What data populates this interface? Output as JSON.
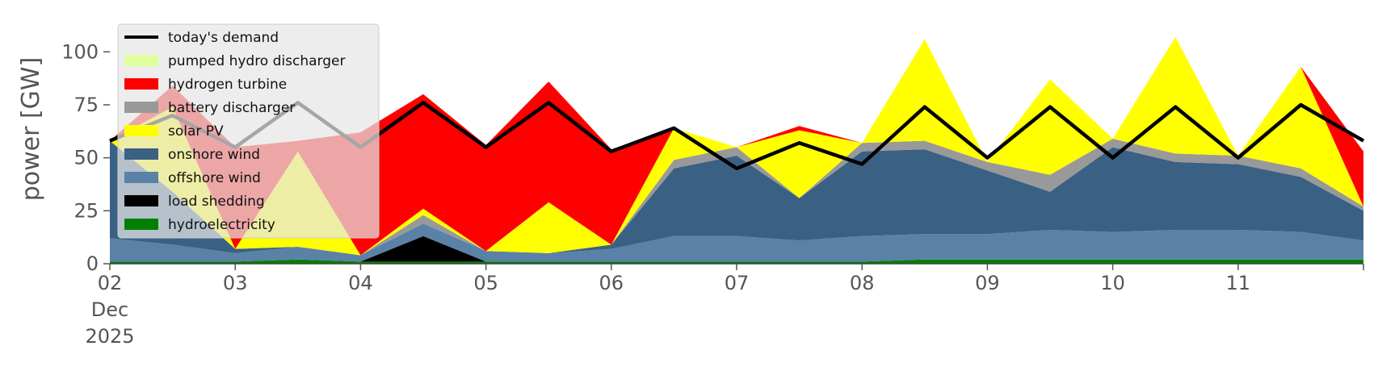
{
  "chart_data": {
    "type": "area",
    "stacked": true,
    "ylabel": "power [GW]",
    "ylim": [
      0,
      110
    ],
    "yticks": [
      0,
      25,
      50,
      75,
      100
    ],
    "xlim": [
      "2025-12-02",
      "2025-12-12"
    ],
    "x_tick_labels": [
      {
        "date": "2025-12-02",
        "lines": [
          "02",
          "Dec",
          "2025"
        ]
      },
      {
        "date": "2025-12-03",
        "lines": [
          "03"
        ]
      },
      {
        "date": "2025-12-04",
        "lines": [
          "04"
        ]
      },
      {
        "date": "2025-12-05",
        "lines": [
          "05"
        ]
      },
      {
        "date": "2025-12-06",
        "lines": [
          "06"
        ]
      },
      {
        "date": "2025-12-07",
        "lines": [
          "07"
        ]
      },
      {
        "date": "2025-12-08",
        "lines": [
          "08"
        ]
      },
      {
        "date": "2025-12-09",
        "lines": [
          "09"
        ]
      },
      {
        "date": "2025-12-10",
        "lines": [
          "10"
        ]
      },
      {
        "date": "2025-12-11",
        "lines": [
          "11"
        ]
      }
    ],
    "grid": false,
    "legend_position": "top-left",
    "x": [
      "2025-12-02 00:00",
      "2025-12-02 12:00",
      "2025-12-03 00:00",
      "2025-12-03 12:00",
      "2025-12-04 00:00",
      "2025-12-04 12:00",
      "2025-12-05 00:00",
      "2025-12-05 12:00",
      "2025-12-06 00:00",
      "2025-12-06 12:00",
      "2025-12-07 00:00",
      "2025-12-07 12:00",
      "2025-12-08 00:00",
      "2025-12-08 12:00",
      "2025-12-09 00:00",
      "2025-12-09 12:00",
      "2025-12-10 00:00",
      "2025-12-10 12:00",
      "2025-12-11 00:00",
      "2025-12-11 12:00",
      "2025-12-12 00:00"
    ],
    "series": [
      {
        "name": "hydroelectricity",
        "color": "#008000",
        "values": [
          1,
          1,
          1,
          2,
          1,
          1,
          1,
          1,
          1,
          1,
          1,
          1,
          1,
          2,
          2,
          2,
          2,
          2,
          2,
          2,
          2
        ]
      },
      {
        "name": "load shedding",
        "color": "#000000",
        "values": [
          0,
          0,
          0,
          0,
          0,
          12,
          0,
          0,
          0,
          0,
          0,
          0,
          0,
          0,
          0,
          0,
          0,
          0,
          0,
          0,
          0
        ]
      },
      {
        "name": "offshore wind",
        "color": "#5a81a6",
        "values": [
          11,
          8,
          4,
          6,
          3,
          6,
          5,
          4,
          6,
          12,
          12,
          10,
          12,
          12,
          12,
          14,
          13,
          14,
          14,
          13,
          9
        ]
      },
      {
        "name": "onshore wind",
        "color": "#3a6184",
        "values": [
          46,
          25,
          2,
          0,
          0,
          0,
          0,
          0,
          2,
          32,
          38,
          20,
          40,
          40,
          30,
          18,
          40,
          32,
          31,
          26,
          14
        ]
      },
      {
        "name": "battery discharger",
        "color": "#999999",
        "values": [
          0,
          0,
          0,
          0,
          0,
          4,
          0,
          0,
          0,
          4,
          4,
          0,
          4,
          4,
          4,
          8,
          4,
          4,
          4,
          4,
          2
        ]
      },
      {
        "name": "solar PV",
        "color": "#ffff00",
        "values": [
          0,
          40,
          0,
          45,
          0,
          3,
          0,
          24,
          0,
          15,
          0,
          32,
          0,
          48,
          0,
          45,
          0,
          55,
          0,
          48,
          0
        ]
      },
      {
        "name": "hydrogen turbine",
        "color": "#ff0000",
        "values": [
          0,
          10,
          48,
          5,
          58,
          54,
          50,
          57,
          45,
          0,
          0,
          2,
          0,
          0,
          0,
          0,
          0,
          0,
          0,
          0,
          26
        ]
      },
      {
        "name": "pumped hydro discharger",
        "color": "#dfff9e",
        "values": [
          0,
          0,
          0,
          0,
          0,
          0,
          0,
          0,
          0,
          0,
          0,
          0,
          0,
          0,
          0,
          0,
          0,
          0,
          0,
          0,
          0
        ]
      }
    ],
    "demand": {
      "name": "today's demand",
      "color": "#000000",
      "values": [
        58,
        70,
        55,
        76,
        55,
        76,
        55,
        76,
        53,
        64,
        45,
        57,
        47,
        74,
        50,
        74,
        50,
        74,
        50,
        75,
        58
      ]
    },
    "legend_order": [
      "today's demand",
      "pumped hydro discharger",
      "hydrogen turbine",
      "battery discharger",
      "solar PV",
      "onshore wind",
      "offshore wind",
      "load shedding",
      "hydroelectricity"
    ]
  }
}
